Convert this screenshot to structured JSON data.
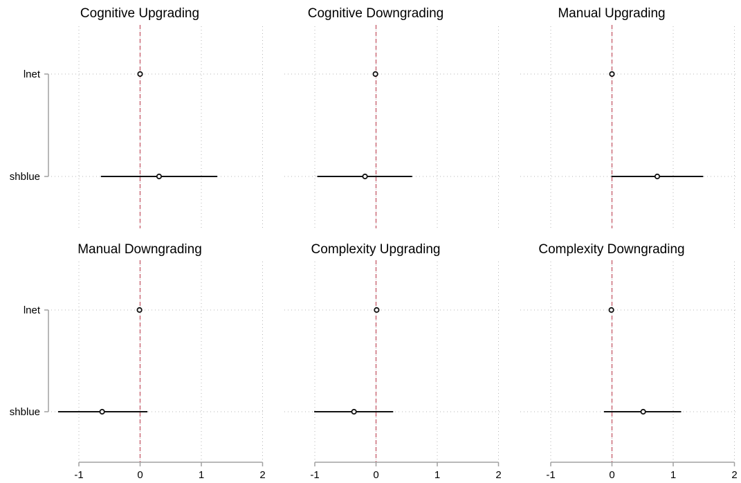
{
  "chart_data": [
    {
      "type": "scatter",
      "title": "Cognitive Upgrading",
      "categories": [
        "lnet",
        "shblue"
      ],
      "estimates": [
        0.0,
        0.31
      ],
      "ci_low": [
        -0.02,
        -0.64
      ],
      "ci_high": [
        0.02,
        1.26
      ],
      "reference_line": 0,
      "xlim": [
        -1,
        2
      ],
      "xticks": [
        "-1",
        "0",
        "1",
        "2"
      ]
    },
    {
      "type": "scatter",
      "title": "Cognitive Downgrading",
      "categories": [
        "lnet",
        "shblue"
      ],
      "estimates": [
        -0.01,
        -0.18
      ],
      "ci_low": [
        -0.03,
        -0.96
      ],
      "ci_high": [
        0.01,
        0.59
      ],
      "reference_line": 0,
      "xlim": [
        -1,
        2
      ],
      "xticks": [
        "-1",
        "0",
        "1",
        "2"
      ]
    },
    {
      "type": "scatter",
      "title": "Manual Upgrading",
      "categories": [
        "lnet",
        "shblue"
      ],
      "estimates": [
        0.0,
        0.74
      ],
      "ci_low": [
        -0.02,
        -0.01
      ],
      "ci_high": [
        0.02,
        1.49
      ],
      "reference_line": 0,
      "xlim": [
        -1,
        2
      ],
      "xticks": [
        "-1",
        "0",
        "1",
        "2"
      ]
    },
    {
      "type": "scatter",
      "title": "Manual Downgrading",
      "categories": [
        "lnet",
        "shblue"
      ],
      "estimates": [
        -0.01,
        -0.62
      ],
      "ci_low": [
        -0.03,
        -1.34
      ],
      "ci_high": [
        0.01,
        0.12
      ],
      "reference_line": 0,
      "xlim": [
        -1,
        2
      ],
      "xticks": [
        "-1",
        "0",
        "1",
        "2"
      ]
    },
    {
      "type": "scatter",
      "title": "Complexity Upgrading",
      "categories": [
        "lnet",
        "shblue"
      ],
      "estimates": [
        0.01,
        -0.36
      ],
      "ci_low": [
        -0.01,
        -1.01
      ],
      "ci_high": [
        0.03,
        0.28
      ],
      "reference_line": 0,
      "xlim": [
        -1,
        2
      ],
      "xticks": [
        "-1",
        "0",
        "1",
        "2"
      ]
    },
    {
      "type": "scatter",
      "title": "Complexity Downgrading",
      "categories": [
        "lnet",
        "shblue"
      ],
      "estimates": [
        -0.01,
        0.51
      ],
      "ci_low": [
        -0.03,
        -0.13
      ],
      "ci_high": [
        0.01,
        1.13
      ],
      "reference_line": 0,
      "xlim": [
        -1,
        2
      ],
      "xticks": [
        "-1",
        "0",
        "1",
        "2"
      ]
    }
  ],
  "colors": {
    "reference_line": "#c96b78",
    "marker": "#111111",
    "ci_line": "#111111",
    "grid": "#b4b4b4",
    "axis": "#a0a0a0",
    "text": "#000000"
  }
}
